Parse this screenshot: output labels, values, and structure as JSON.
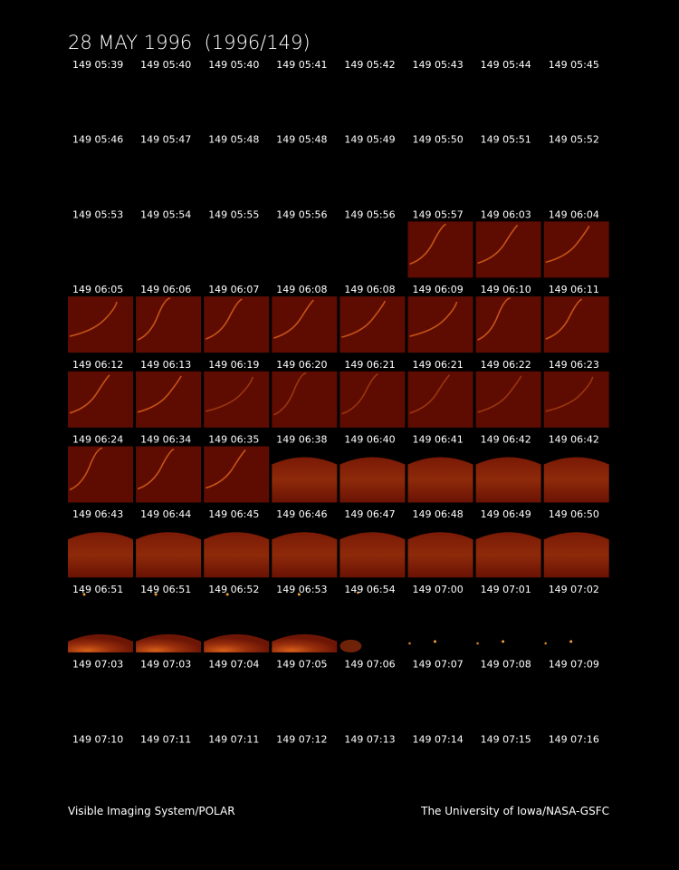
{
  "title": "28 MAY 1996  (1996/149)",
  "frames": [
    [
      "149 05:39",
      "149 05:40",
      "149 05:40",
      "149 05:41",
      "149 05:42",
      "149 05:43",
      "149 05:44",
      "149 05:45"
    ],
    [
      "149 05:46",
      "149 05:47",
      "149 05:48",
      "149 05:48",
      "149 05:49",
      "149 05:50",
      "149 05:51",
      "149 05:52"
    ],
    [
      "149 05:53",
      "149 05:54",
      "149 05:55",
      "149 05:56",
      "149 05:56",
      "149 05:57",
      "149 06:03",
      "149 06:04"
    ],
    [
      "149 06:05",
      "149 06:06",
      "149 06:07",
      "149 06:08",
      "149 06:08",
      "149 06:09",
      "149 06:10",
      "149 06:11"
    ],
    [
      "149 06:12",
      "149 06:13",
      "149 06:19",
      "149 06:20",
      "149 06:21",
      "149 06:21",
      "149 06:22",
      "149 06:23"
    ],
    [
      "149 06:24",
      "149 06:34",
      "149 06:35",
      "149 06:38",
      "149 06:40",
      "149 06:41",
      "149 06:42",
      "149 06:42"
    ],
    [
      "149 06:43",
      "149 06:44",
      "149 06:45",
      "149 06:46",
      "149 06:47",
      "149 06:48",
      "149 06:49",
      "149 06:50"
    ],
    [
      "149 06:51",
      "149 06:51",
      "149 06:52",
      "149 06:53",
      "149 06:54",
      "149 07:00",
      "149 07:01",
      "149 07:02"
    ],
    [
      "149 07:03",
      "149 07:03",
      "149 07:04",
      "149 07:05",
      "149 07:06",
      "149 07:07",
      "149 07:08",
      "149 07:09"
    ],
    [
      "149 07:10",
      "149 07:11",
      "149 07:11",
      "149 07:12",
      "149 07:13",
      "149 07:14",
      "149 07:15",
      "149 07:16"
    ]
  ],
  "footer": {
    "left": "Visible Imaging System/POLAR",
    "right": "The University of Iowa/NASA-GSFC"
  }
}
